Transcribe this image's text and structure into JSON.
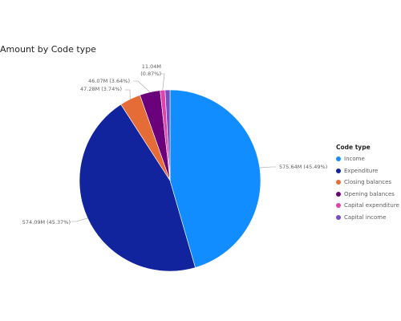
{
  "chart_data": {
    "type": "pie",
    "title": "Amount by Code type",
    "legend_title": "Code type",
    "legend_position": "right",
    "series": [
      {
        "name": "Income",
        "value": 575.64,
        "label": "575.64M (45.49%)",
        "color": "#118DFF"
      },
      {
        "name": "Expenditure",
        "value": 574.09,
        "label": "574.09M (45.37%)",
        "color": "#12239E"
      },
      {
        "name": "Closing balances",
        "value": 47.28,
        "label": "47.28M (3.74%)",
        "color": "#E66C37"
      },
      {
        "name": "Opening balances",
        "value": 46.07,
        "label": "46.07M (3.64%)",
        "color": "#6B007B"
      },
      {
        "name": "Capital expenditure",
        "value": 11.04,
        "label": "11.04M (0.87%)",
        "color": "#E044A7"
      },
      {
        "name": "Capital income",
        "value": 11.04,
        "label": "",
        "color": "#744EC2"
      }
    ]
  }
}
